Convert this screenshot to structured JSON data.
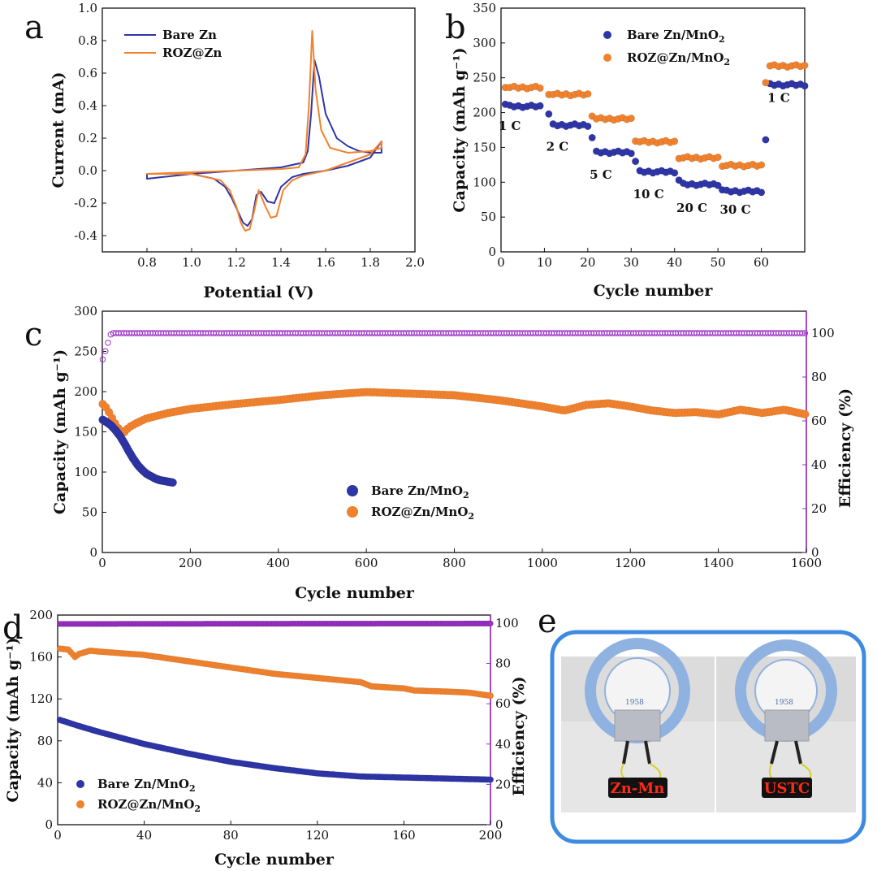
{
  "panel_labels": {
    "a": "a",
    "b": "b",
    "c": "c",
    "d": "d",
    "e": "e"
  },
  "colors": {
    "bare": "#2e35a6",
    "roz": "#f0822e",
    "efficiency": "#9b30c4",
    "frame": "#3d8be0"
  },
  "chart_data": [
    {
      "id": "a",
      "type": "line",
      "title": "",
      "xlabel": "Potential (V)",
      "ylabel": "Current (mA)",
      "xlim": [
        0.6,
        2.0
      ],
      "ylim": [
        -0.5,
        1.0
      ],
      "xticks": [
        0.8,
        1.0,
        1.2,
        1.4,
        1.6,
        1.8,
        2.0
      ],
      "yticks": [
        -0.4,
        -0.2,
        0.0,
        0.2,
        0.4,
        0.6,
        0.8,
        1.0
      ],
      "xtick_labels": [
        "0.8",
        "1.0",
        "1.2",
        "1.4",
        "1.6",
        "1.8",
        "2.0"
      ],
      "ytick_labels": [
        "-0.4",
        "-0.2",
        "0.0",
        "0.2",
        "0.4",
        "0.6",
        "0.8",
        "1.0"
      ],
      "legend": {
        "position": "top-left",
        "entries": [
          "Bare Zn",
          "ROZ@Zn"
        ]
      },
      "series": [
        {
          "name": "Bare Zn",
          "color": "#2e35a6",
          "closed": true,
          "x": [
            0.8,
            1.0,
            1.2,
            1.4,
            1.5,
            1.52,
            1.535,
            1.55,
            1.57,
            1.6,
            1.65,
            1.7,
            1.75,
            1.8,
            1.85,
            1.85,
            1.8,
            1.7,
            1.6,
            1.5,
            1.45,
            1.4,
            1.37,
            1.34,
            1.31,
            1.29,
            1.27,
            1.25,
            1.23,
            1.21,
            1.18,
            1.15,
            1.1,
            1.0,
            0.9,
            0.8
          ],
          "y": [
            -0.05,
            -0.02,
            0.0,
            0.02,
            0.05,
            0.12,
            0.35,
            0.68,
            0.58,
            0.35,
            0.2,
            0.15,
            0.12,
            0.11,
            0.11,
            0.18,
            0.08,
            0.03,
            0.0,
            -0.02,
            -0.04,
            -0.1,
            -0.2,
            -0.19,
            -0.13,
            -0.15,
            -0.3,
            -0.34,
            -0.32,
            -0.26,
            -0.17,
            -0.1,
            -0.05,
            -0.02,
            -0.02,
            -0.02
          ]
        },
        {
          "name": "ROZ@Zn",
          "color": "#f0822e",
          "closed": true,
          "x": [
            0.8,
            1.0,
            1.2,
            1.4,
            1.48,
            1.51,
            1.525,
            1.54,
            1.555,
            1.58,
            1.62,
            1.7,
            1.8,
            1.85,
            1.85,
            1.8,
            1.7,
            1.6,
            1.5,
            1.45,
            1.41,
            1.38,
            1.355,
            1.33,
            1.3,
            1.28,
            1.26,
            1.24,
            1.22,
            1.2,
            1.17,
            1.13,
            1.0,
            0.9,
            0.8
          ],
          "y": [
            -0.02,
            -0.01,
            0.0,
            0.01,
            0.02,
            0.1,
            0.4,
            0.86,
            0.5,
            0.25,
            0.14,
            0.11,
            0.12,
            0.14,
            0.18,
            0.1,
            0.05,
            0.0,
            -0.03,
            -0.06,
            -0.12,
            -0.28,
            -0.29,
            -0.22,
            -0.12,
            -0.25,
            -0.36,
            -0.37,
            -0.32,
            -0.22,
            -0.12,
            -0.06,
            -0.02,
            -0.02,
            -0.02
          ]
        }
      ]
    },
    {
      "id": "b",
      "type": "scatter",
      "xlabel": "Cycle number",
      "ylabel": "Capacity (mAh g⁻¹)",
      "xlim": [
        0,
        70
      ],
      "ylim": [
        0,
        350
      ],
      "xticks": [
        0,
        10,
        20,
        30,
        40,
        50,
        60
      ],
      "yticks": [
        0,
        50,
        100,
        150,
        200,
        250,
        300,
        350
      ],
      "xtick_labels": [
        "0",
        "10",
        "20",
        "30",
        "40",
        "50",
        "60"
      ],
      "ytick_labels": [
        "0",
        "50",
        "100",
        "150",
        "200",
        "250",
        "300",
        "350"
      ],
      "legend": {
        "position": "top-right",
        "entries": [
          "Bare Zn/MnO2",
          "ROZ@Zn/MnO2"
        ]
      },
      "rate_labels": [
        {
          "text": "1 C",
          "x": 2,
          "y": 175
        },
        {
          "text": "2 C",
          "x": 13,
          "y": 145
        },
        {
          "text": "5 C",
          "x": 23,
          "y": 105
        },
        {
          "text": "10 C",
          "x": 34,
          "y": 77
        },
        {
          "text": "20 C",
          "x": 44,
          "y": 57
        },
        {
          "text": "30 C",
          "x": 54,
          "y": 55
        },
        {
          "text": "1 C",
          "x": 64,
          "y": 215
        }
      ],
      "series": [
        {
          "name": "Bare Zn/MnO2",
          "color": "#2e35a6",
          "segments": [
            {
              "x0": 1,
              "x1": 9,
              "level": 209,
              "first": 212
            },
            {
              "x0": 11,
              "x1": 20,
              "level": 182,
              "first": 198
            },
            {
              "x0": 21,
              "x1": 30,
              "level": 143,
              "first": 164
            },
            {
              "x0": 31,
              "x1": 40,
              "level": 115,
              "first": 130
            },
            {
              "x0": 41,
              "x1": 50,
              "level": 97,
              "first": 103
            },
            {
              "x0": 51,
              "x1": 60,
              "level": 87,
              "first": 89
            },
            {
              "x0": 61,
              "x1": 70,
              "level": 240,
              "first": 161
            }
          ]
        },
        {
          "name": "ROZ@Zn/MnO2",
          "color": "#f0822e",
          "segments": [
            {
              "x0": 1,
              "x1": 9,
              "level": 236,
              "first": 236
            },
            {
              "x0": 11,
              "x1": 20,
              "level": 226,
              "first": 226
            },
            {
              "x0": 21,
              "x1": 30,
              "level": 191,
              "first": 195
            },
            {
              "x0": 31,
              "x1": 40,
              "level": 158,
              "first": 159
            },
            {
              "x0": 41,
              "x1": 50,
              "level": 135,
              "first": 134
            },
            {
              "x0": 51,
              "x1": 60,
              "level": 124,
              "first": 123
            },
            {
              "x0": 61,
              "x1": 70,
              "level": 267,
              "first": 243
            }
          ]
        }
      ]
    },
    {
      "id": "c",
      "type": "scatter",
      "xlabel": "Cycle number",
      "ylabel": "Capacity (mAh g⁻¹)",
      "y2label": "Efficiency (%)",
      "xlim": [
        0,
        1600
      ],
      "ylim": [
        0,
        300
      ],
      "y2lim": [
        0,
        110
      ],
      "xticks": [
        0,
        200,
        400,
        600,
        800,
        1000,
        1200,
        1400,
        1600
      ],
      "yticks": [
        0,
        50,
        100,
        150,
        200,
        250,
        300
      ],
      "y2ticks": [
        0,
        20,
        40,
        60,
        80,
        100
      ],
      "xtick_labels": [
        "0",
        "200",
        "400",
        "600",
        "800",
        "1000",
        "1200",
        "1400",
        "1600"
      ],
      "ytick_labels": [
        "0",
        "50",
        "100",
        "150",
        "200",
        "250",
        "300"
      ],
      "y2tick_labels": [
        "0",
        "20",
        "40",
        "60",
        "80",
        "100"
      ],
      "legend": {
        "position": "center-left",
        "entries": [
          "Bare Zn/MnO2",
          "ROZ@Zn/MnO2"
        ]
      },
      "series": [
        {
          "name": "Bare Zn/MnO2",
          "color": "#2e35a6",
          "x": [
            1,
            10,
            20,
            30,
            40,
            50,
            60,
            70,
            80,
            90,
            100,
            110,
            120,
            130,
            140,
            150,
            160
          ],
          "y": [
            165,
            162,
            158,
            152,
            145,
            136,
            126,
            117,
            109,
            103,
            98,
            95,
            92,
            90,
            89,
            88,
            87
          ]
        },
        {
          "name": "ROZ@Zn/MnO2",
          "color": "#f0822e",
          "x": [
            1,
            10,
            20,
            30,
            40,
            50,
            60,
            80,
            100,
            150,
            200,
            300,
            400,
            500,
            600,
            700,
            800,
            900,
            1000,
            1050,
            1100,
            1150,
            1200,
            1250,
            1300,
            1350,
            1400,
            1450,
            1500,
            1550,
            1600
          ],
          "y": [
            183,
            178,
            168,
            158,
            150,
            148,
            154,
            160,
            165,
            172,
            177,
            183,
            188,
            194,
            198,
            196,
            194,
            188,
            180,
            175,
            182,
            184,
            180,
            175,
            172,
            173,
            170,
            176,
            172,
            176,
            170
          ]
        },
        {
          "name": "Efficiency",
          "color": "#9b30c4",
          "axis": "y2",
          "x": [
            1,
            20,
            1600
          ],
          "y": [
            88,
            100,
            100
          ]
        }
      ]
    },
    {
      "id": "d",
      "type": "scatter",
      "xlabel": "Cycle number",
      "ylabel": "Capacity (mAh g⁻¹)",
      "y2label": "Efficiency (%)",
      "xlim": [
        0,
        200
      ],
      "ylim": [
        0,
        200
      ],
      "y2lim": [
        0,
        104
      ],
      "xticks": [
        0,
        40,
        80,
        120,
        160,
        200
      ],
      "yticks": [
        0,
        40,
        80,
        120,
        160,
        200
      ],
      "y2ticks": [
        0,
        20,
        40,
        60,
        80,
        100
      ],
      "xtick_labels": [
        "0",
        "40",
        "80",
        "120",
        "160",
        "200"
      ],
      "ytick_labels": [
        "0",
        "40",
        "80",
        "120",
        "160",
        "200"
      ],
      "y2tick_labels": [
        "0",
        "20",
        "40",
        "60",
        "80",
        "100"
      ],
      "legend": {
        "position": "bottom-left",
        "entries": [
          "Bare Zn/MnO2",
          "ROZ@Zn/MnO2"
        ]
      },
      "series": [
        {
          "name": "Bare Zn/MnO2",
          "color": "#2e35a6",
          "x": [
            1,
            10,
            20,
            40,
            60,
            80,
            100,
            120,
            140,
            160,
            180,
            200
          ],
          "y": [
            100,
            94,
            88,
            77,
            68,
            60,
            54,
            49,
            46,
            45,
            44,
            43
          ]
        },
        {
          "name": "ROZ@Zn/MnO2",
          "color": "#f0822e",
          "x": [
            1,
            5,
            8,
            10,
            15,
            20,
            40,
            60,
            80,
            100,
            120,
            140,
            145,
            160,
            165,
            180,
            190,
            200
          ],
          "y": [
            168,
            167,
            160,
            163,
            166,
            165,
            162,
            156,
            150,
            144,
            140,
            136,
            132,
            130,
            128,
            127,
            126,
            123
          ]
        },
        {
          "name": "Efficiency",
          "color": "#9b30c4",
          "axis": "y2",
          "x": [
            1,
            200
          ],
          "y": [
            99.6,
            99.8
          ]
        }
      ]
    }
  ],
  "panel_e": {
    "led_texts": [
      "Zn-Mn",
      "USTC"
    ],
    "logo_year": "1958"
  }
}
